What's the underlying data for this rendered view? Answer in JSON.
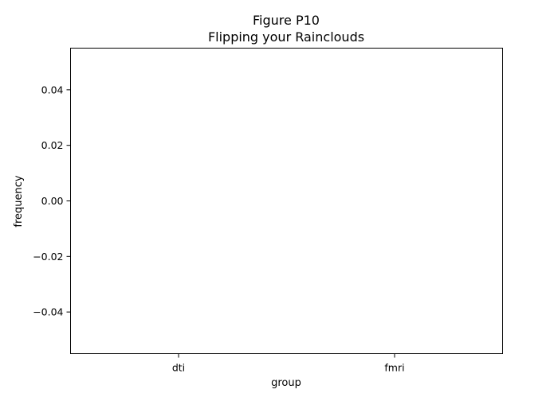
{
  "chart_data": {
    "type": "scatter",
    "title": "Figure P10",
    "subtitle": "Flipping your Rainclouds",
    "xlabel": "group",
    "ylabel": "frequency",
    "categories": [
      "dti",
      "fmri"
    ],
    "series": [],
    "ylim": [
      -0.055,
      0.055
    ],
    "yticks": [
      0.04,
      0.02,
      0.0,
      -0.02,
      -0.04
    ],
    "ytick_labels": [
      "0.04",
      "0.02",
      "0.00",
      "−0.02",
      "−0.04"
    ],
    "grid": false,
    "legend": "none"
  }
}
